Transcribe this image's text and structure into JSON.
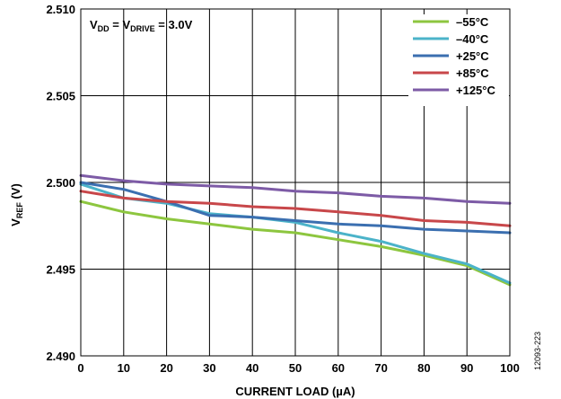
{
  "chart_data": {
    "type": "line",
    "title": "",
    "xlabel": "CURRENT LOAD (µA)",
    "ylabel": {
      "main": "V",
      "sub": "REF",
      "suffix": " (V)"
    },
    "xlim": [
      0,
      100
    ],
    "ylim": [
      2.49,
      2.51
    ],
    "x_ticks": [
      "0",
      "10",
      "20",
      "30",
      "40",
      "50",
      "60",
      "70",
      "80",
      "90",
      "100"
    ],
    "y_ticks": [
      "2.490",
      "2.495",
      "2.500",
      "2.505",
      "2.510"
    ],
    "grid": true,
    "legend_position": "top-right",
    "annotation": {
      "p1": "V",
      "s1": "DD",
      "p2": " = V",
      "s2": "DRIVE",
      "p3": " = 3.0V"
    },
    "figure_id": "12093-223",
    "series": [
      {
        "name": "–55°C",
        "color": "#8dc63f",
        "x": [
          0,
          10,
          20,
          30,
          40,
          50,
          60,
          70,
          80,
          90,
          100
        ],
        "y": [
          2.4989,
          2.4983,
          2.4979,
          2.4976,
          2.4973,
          2.4971,
          2.4967,
          2.4963,
          2.4958,
          2.4952,
          2.4941
        ]
      },
      {
        "name": "–40°C",
        "color": "#4bb3c9",
        "x": [
          0,
          10,
          20,
          30,
          35,
          40,
          50,
          60,
          70,
          80,
          90,
          100
        ],
        "y": [
          2.4999,
          2.4991,
          2.4988,
          2.4982,
          2.4981,
          2.498,
          2.4977,
          2.4971,
          2.4966,
          2.4959,
          2.4953,
          2.4942
        ]
      },
      {
        "name": "+25°C",
        "color": "#3b6fb0",
        "x": [
          0,
          10,
          20,
          30,
          40,
          50,
          60,
          70,
          80,
          90,
          100
        ],
        "y": [
          2.5,
          2.4996,
          2.4989,
          2.4981,
          2.498,
          2.4978,
          2.4976,
          2.4975,
          2.4973,
          2.4972,
          2.4971
        ]
      },
      {
        "name": "+85°C",
        "color": "#c8474a",
        "x": [
          0,
          10,
          20,
          30,
          40,
          50,
          60,
          70,
          80,
          90,
          100
        ],
        "y": [
          2.4995,
          2.4991,
          2.4989,
          2.4988,
          2.4986,
          2.4985,
          2.4983,
          2.4981,
          2.4978,
          2.4977,
          2.4975
        ]
      },
      {
        "name": "+125°C",
        "color": "#7d5ba6",
        "x": [
          0,
          10,
          20,
          30,
          40,
          50,
          60,
          70,
          80,
          90,
          100
        ],
        "y": [
          2.5004,
          2.5001,
          2.4999,
          2.4998,
          2.4997,
          2.4995,
          2.4994,
          2.4992,
          2.4991,
          2.4989,
          2.4988
        ]
      }
    ]
  }
}
